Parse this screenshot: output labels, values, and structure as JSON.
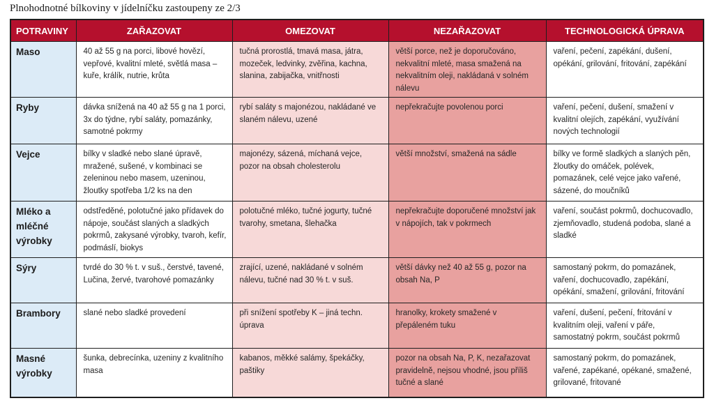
{
  "title": "Plnohodnotné bílkoviny v jídelníčku zastoupeny ze 2/3",
  "colors": {
    "header_bg": "#b5102d",
    "food_col_bg": "#dcebf7",
    "omezovat_bg": "#f7d9d8",
    "nezarazovat_bg": "#e8a19f"
  },
  "headers": [
    "POTRAVINY",
    "ZAŘAZOVAT",
    "OMEZOVAT",
    "NEZAŘAZOVAT",
    "TECHNOLOGICKÁ ÚPRAVA"
  ],
  "rows": [
    {
      "food": "Maso",
      "zarazovat": "40 až 55 g na porci, libové hovězí, vepřové, kvalitní mleté, světlá masa – kuře, králík, nutrie, krůta",
      "omezovat": "tučná prorostlá, tmavá masa, játra, mozeček, ledvinky, zvěřina, kachna, slanina, zabijačka, vnitřnosti",
      "nezarazovat": "větší porce, než je doporučováno, nekvalitní mleté, masa smažená na nekvalitním oleji, nakládaná v solném nálevu",
      "uprava": "vaření, pečení, zapékání, dušení, opékání, grilování, fritování, zapékání"
    },
    {
      "food": "Ryby",
      "zarazovat": "dávka snížená na 40 až 55 g na 1 porci, 3x do týdne, rybí saláty, pomazánky, samotné pokrmy",
      "omezovat": "rybí saláty s majonézou, nakládané ve slaném nálevu, uzené",
      "nezarazovat": "nepřekračujte povolenou porci",
      "uprava": "vaření, pečení, dušení, smažení v kvalitní olejích, zapékání, využívání nových technologií"
    },
    {
      "food": "Vejce",
      "zarazovat": "bílky v sladké nebo slané úpravě, mražené, sušené, v kombinaci se zeleninou nebo masem, uzeninou, žloutky spotřeba 1/2 ks na den",
      "omezovat": "majonézy, sázená, míchaná vejce, pozor na obsah cholesterolu",
      "nezarazovat": "větší množství, smažená na sádle",
      "uprava": "bílky ve formě sladkých a slaných pěn, žloutky do omáček, polévek, pomazánek, celé vejce jako vařené, sázené, do moučníků"
    },
    {
      "food": "Mléko a mléčné výrobky",
      "zarazovat": "odstředěné, polotučné jako přídavek do nápoje, součást slaných a sladkých pokrmů, zakysané výrobky, tvaroh, kefír, podmáslí, biokys",
      "omezovat": "polotučné mléko, tučné jogurty, tučné tvarohy, smetana, šlehačka",
      "nezarazovat": "nepřekračujte doporučené množství jak v nápojích, tak v pokrmech",
      "uprava": "vaření, součást pokrmů, dochucovadlo, zjemňovadlo, studená podoba, slané a sladké"
    },
    {
      "food": "Sýry",
      "zarazovat": "tvrdé do 30 % t. v suš., čerstvé, tavené, Lučina, žervé, tvarohové pomazánky",
      "omezovat": "zrající, uzené, nakládané v solném nálevu, tučné nad 30 % t. v suš.",
      "nezarazovat": "větší dávky než 40 až 55 g, pozor na obsah Na, P",
      "uprava": "samostaný pokrm, do pomazánek, vaření, dochucovadlo, zapékání, opékání, smažení, grilování, fritování"
    },
    {
      "food": "Brambory",
      "zarazovat": "slané nebo sladké provedení",
      "omezovat": "při snížení spotřeby K – jiná techn. úprava",
      "nezarazovat": "hranolky, krokety smažené v přepáleném tuku",
      "uprava": "vaření, dušení, pečení, fritování v kvalitním oleji, vaření v páře, samostatný pokrm, součást pokrmů"
    },
    {
      "food": "Masné výrobky",
      "zarazovat": "šunka, debrecínka, uzeniny z kvalitního masa",
      "omezovat": "kabanos, měkké salámy, špekáčky, paštiky",
      "nezarazovat": "pozor na obsah Na, P, K, nezařazovat pravidelně, nejsou vhodné, jsou příliš tučné a slané",
      "uprava": "samostaný pokrm, do pomazánek, vařené, zapékané, opékané, smažené, grilované, fritované"
    }
  ]
}
